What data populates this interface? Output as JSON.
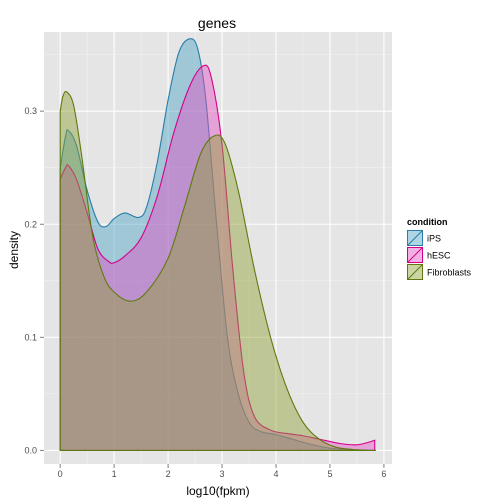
{
  "chart_data": {
    "type": "area",
    "title": "genes",
    "xlabel": "log10(fpkm)",
    "ylabel": "density",
    "xlim": [
      -0.3,
      6.15
    ],
    "ylim": [
      -0.012,
      0.37
    ],
    "x_ticks": [
      0,
      1,
      2,
      3,
      4,
      5,
      6
    ],
    "y_ticks": [
      0.0,
      0.1,
      0.2,
      0.3
    ],
    "y_tick_labels": [
      "0.0",
      "0.1",
      "0.2",
      "0.3"
    ],
    "grid": true,
    "legend": {
      "title": "condition",
      "placement": "right"
    },
    "series": [
      {
        "name": "iPS",
        "fill": "#4aa1c4",
        "stroke": "#2a7da8",
        "points": [
          [
            0,
            0.25
          ],
          [
            0.1,
            0.278
          ],
          [
            0.15,
            0.283
          ],
          [
            0.3,
            0.27
          ],
          [
            0.5,
            0.23
          ],
          [
            0.7,
            0.202
          ],
          [
            0.85,
            0.198
          ],
          [
            1.0,
            0.205
          ],
          [
            1.2,
            0.21
          ],
          [
            1.45,
            0.206
          ],
          [
            1.6,
            0.215
          ],
          [
            1.8,
            0.255
          ],
          [
            2.0,
            0.31
          ],
          [
            2.2,
            0.352
          ],
          [
            2.4,
            0.364
          ],
          [
            2.55,
            0.355
          ],
          [
            2.7,
            0.31
          ],
          [
            2.9,
            0.2
          ],
          [
            3.1,
            0.1
          ],
          [
            3.3,
            0.05
          ],
          [
            3.5,
            0.025
          ],
          [
            3.7,
            0.017
          ],
          [
            4.0,
            0.014
          ],
          [
            4.3,
            0.01
          ],
          [
            4.6,
            0.006
          ],
          [
            5.0,
            0.002
          ],
          [
            5.5,
            0.0005
          ],
          [
            5.85,
            0
          ]
        ]
      },
      {
        "name": "hESC",
        "fill": "#e24fc4",
        "stroke": "#d4008a",
        "points": [
          [
            0,
            0.24
          ],
          [
            0.1,
            0.25
          ],
          [
            0.15,
            0.252
          ],
          [
            0.3,
            0.24
          ],
          [
            0.5,
            0.21
          ],
          [
            0.7,
            0.178
          ],
          [
            0.9,
            0.167
          ],
          [
            1.0,
            0.166
          ],
          [
            1.2,
            0.172
          ],
          [
            1.5,
            0.188
          ],
          [
            1.8,
            0.225
          ],
          [
            2.1,
            0.28
          ],
          [
            2.4,
            0.322
          ],
          [
            2.65,
            0.34
          ],
          [
            2.8,
            0.33
          ],
          [
            3.0,
            0.27
          ],
          [
            3.2,
            0.16
          ],
          [
            3.4,
            0.07
          ],
          [
            3.6,
            0.03
          ],
          [
            3.9,
            0.018
          ],
          [
            4.2,
            0.015
          ],
          [
            4.5,
            0.013
          ],
          [
            4.8,
            0.01
          ],
          [
            5.2,
            0.006
          ],
          [
            5.5,
            0.005
          ],
          [
            5.7,
            0.007
          ],
          [
            5.83,
            0.009
          ]
        ]
      },
      {
        "name": "Fibroblasts",
        "fill": "#8da033",
        "stroke": "#5e7a0e",
        "points": [
          [
            0,
            0.3
          ],
          [
            0.05,
            0.313
          ],
          [
            0.12,
            0.317
          ],
          [
            0.25,
            0.305
          ],
          [
            0.4,
            0.26
          ],
          [
            0.6,
            0.19
          ],
          [
            0.8,
            0.155
          ],
          [
            1.0,
            0.14
          ],
          [
            1.3,
            0.132
          ],
          [
            1.6,
            0.14
          ],
          [
            2.0,
            0.17
          ],
          [
            2.3,
            0.215
          ],
          [
            2.6,
            0.262
          ],
          [
            2.85,
            0.278
          ],
          [
            3.05,
            0.272
          ],
          [
            3.3,
            0.23
          ],
          [
            3.6,
            0.16
          ],
          [
            3.9,
            0.1
          ],
          [
            4.2,
            0.055
          ],
          [
            4.5,
            0.025
          ],
          [
            4.8,
            0.01
          ],
          [
            5.1,
            0.003
          ],
          [
            5.5,
            0.0005
          ],
          [
            5.85,
            0
          ]
        ]
      }
    ]
  }
}
